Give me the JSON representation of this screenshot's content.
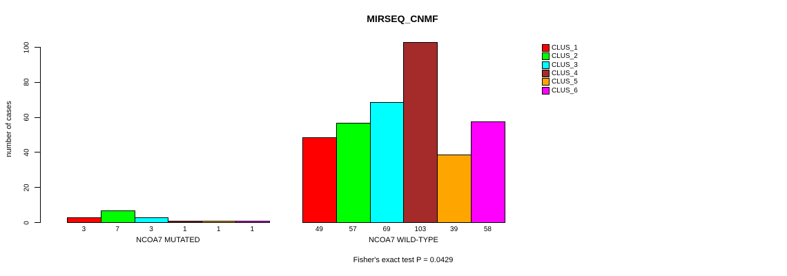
{
  "title": "MIRSEQ_CNMF",
  "footer": "Fisher's exact test P = 0.0429",
  "y_axis": {
    "label": "number of cases",
    "ticks": [
      0,
      20,
      40,
      60,
      80,
      100
    ]
  },
  "legend": {
    "items": [
      {
        "label": "CLUS_1",
        "color": "#ff0000"
      },
      {
        "label": "CLUS_2",
        "color": "#00ff00"
      },
      {
        "label": "CLUS_3",
        "color": "#00ffff"
      },
      {
        "label": "CLUS_4",
        "color": "#a52a2a"
      },
      {
        "label": "CLUS_5",
        "color": "#ffa500"
      },
      {
        "label": "CLUS_6",
        "color": "#ff00ff"
      }
    ]
  },
  "chart_data": {
    "type": "bar",
    "title": "MIRSEQ_CNMF",
    "ylabel": "number of cases",
    "xlabel": "",
    "ylim": [
      0,
      100
    ],
    "yticks": [
      0,
      20,
      40,
      60,
      80,
      100
    ],
    "grid": false,
    "legend_position": "top-right",
    "series_names": [
      "CLUS_1",
      "CLUS_2",
      "CLUS_3",
      "CLUS_4",
      "CLUS_5",
      "CLUS_6"
    ],
    "series_colors": [
      "#ff0000",
      "#00ff00",
      "#00ffff",
      "#a52a2a",
      "#ffa500",
      "#ff00ff"
    ],
    "groups": [
      {
        "label": "NCOA7 MUTATED",
        "values": [
          3,
          7,
          3,
          1,
          1,
          1
        ]
      },
      {
        "label": "NCOA7 WILD-TYPE",
        "values": [
          49,
          57,
          69,
          103,
          39,
          58
        ]
      }
    ],
    "bar_value_labels_visible": true,
    "annotation": "Fisher's exact test P = 0.0429"
  }
}
